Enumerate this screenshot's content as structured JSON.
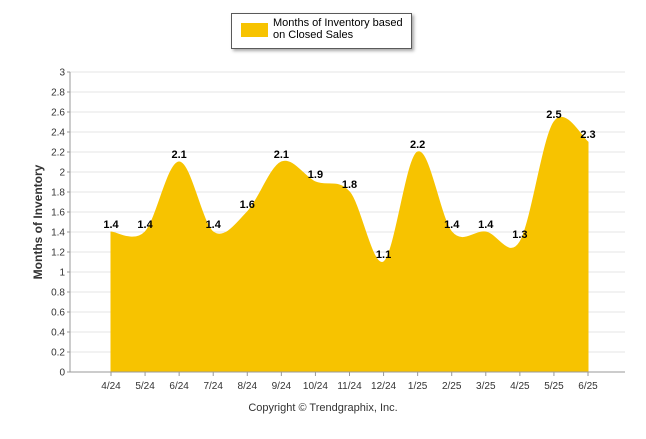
{
  "legend": {
    "label": "Months of Inventory based on Closed Sales"
  },
  "footer": {
    "copyright": "Copyright © Trendgraphix, Inc."
  },
  "colors": {
    "series": "#f7c300",
    "grid": "#e6e6e6",
    "axis": "#999999",
    "label": "#000000"
  },
  "chart_data": {
    "type": "area",
    "title": "",
    "xlabel": "",
    "ylabel": "Months of Inventory",
    "ylim": [
      0,
      3
    ],
    "yticks": [
      "0",
      "0.2",
      "0.4",
      "0.6",
      "0.8",
      "1",
      "1.2",
      "1.4",
      "1.6",
      "1.8",
      "2",
      "2.2",
      "2.4",
      "2.6",
      "2.8",
      "3"
    ],
    "categories": [
      "4/24",
      "5/24",
      "6/24",
      "7/24",
      "8/24",
      "9/24",
      "10/24",
      "11/24",
      "12/24",
      "1/25",
      "2/25",
      "3/25",
      "4/25",
      "5/25",
      "6/25"
    ],
    "series": [
      {
        "name": "Months of Inventory based on Closed Sales",
        "values": [
          1.4,
          1.4,
          2.1,
          1.4,
          1.6,
          2.1,
          1.9,
          1.8,
          1.1,
          2.2,
          1.4,
          1.4,
          1.3,
          2.5,
          2.3
        ],
        "labels": [
          "1.4",
          "1.4",
          "2.1",
          "1.4",
          "1.6",
          "2.1",
          "1.9",
          "1.8",
          "1.1",
          "2.2",
          "1.4",
          "1.4",
          "1.3",
          "2.5",
          "2.3"
        ]
      }
    ],
    "grid": true,
    "legend_position": "top-center"
  }
}
